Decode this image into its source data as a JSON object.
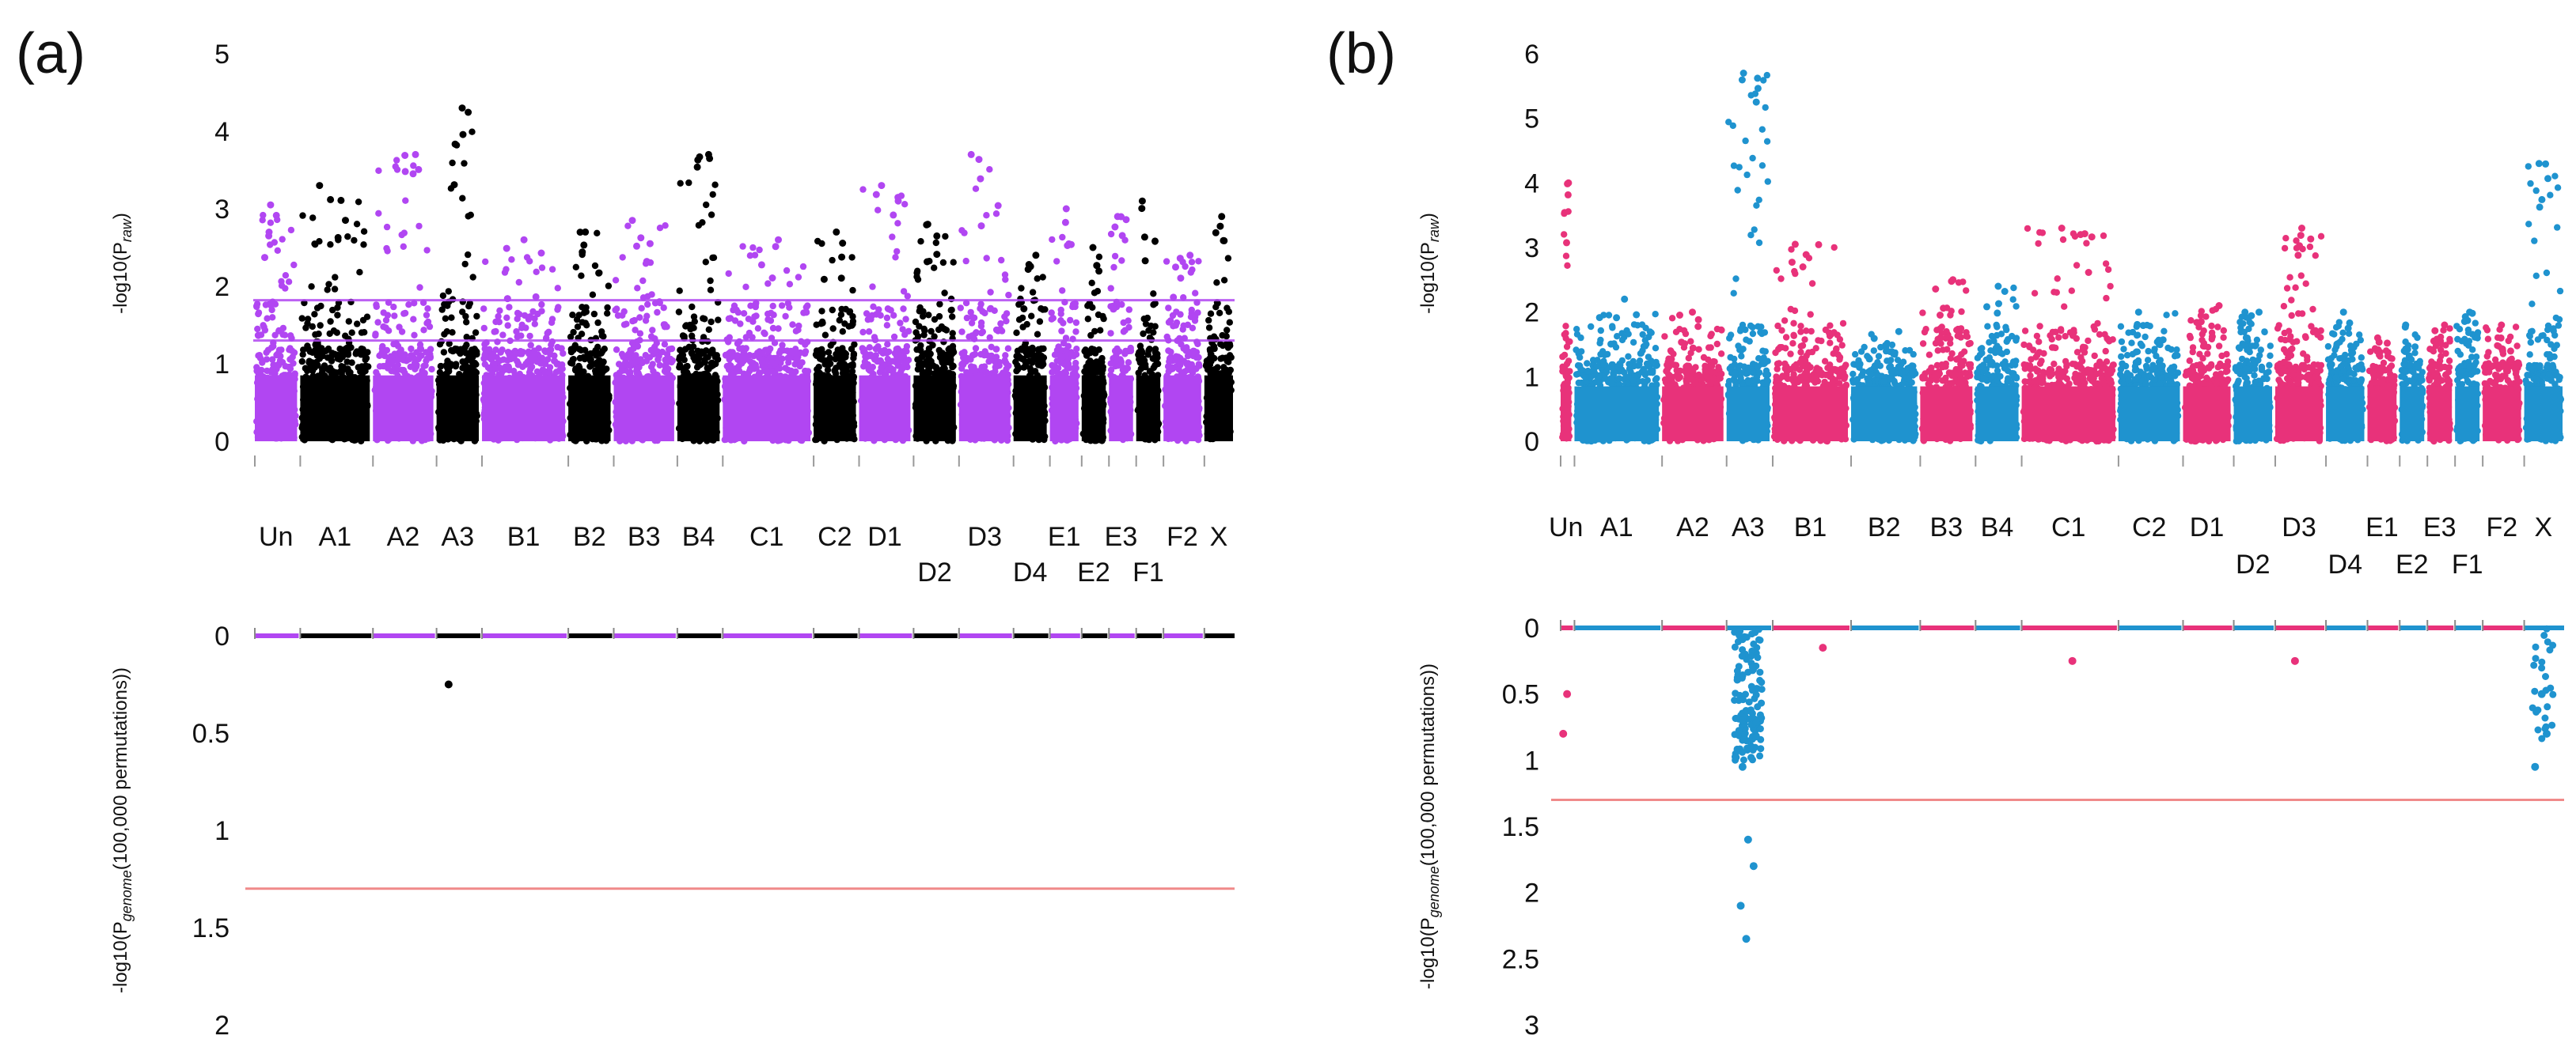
{
  "chart_data": [
    {
      "panel": "(a)",
      "type": "scatter",
      "subtype": "manhattan",
      "top": {
        "ylabel_main": "-log10(P",
        "ylabel_sub": "raw",
        "ylabel_end": ")",
        "ylim": [
          0,
          5
        ],
        "ticks": [
          "0",
          "1",
          "2",
          "3",
          "4",
          "5"
        ],
        "colors": [
          "#b146f2",
          "#000000"
        ],
        "threshold_lines": [
          1.3,
          1.82
        ],
        "threshold_color": "#b146f2"
      },
      "chromosomes": [
        {
          "name": "Un",
          "label_row": 0,
          "peak": 3.05
        },
        {
          "name": "A1",
          "label_row": 0,
          "peak": 3.3
        },
        {
          "name": "A2",
          "label_row": 0,
          "peak": 3.7
        },
        {
          "name": "A3",
          "label_row": 0,
          "peak": 4.3
        },
        {
          "name": "B1",
          "label_row": 0,
          "peak": 2.6
        },
        {
          "name": "B2",
          "label_row": 0,
          "peak": 2.7
        },
        {
          "name": "B3",
          "label_row": 0,
          "peak": 2.85
        },
        {
          "name": "B4",
          "label_row": 0,
          "peak": 3.7
        },
        {
          "name": "C1",
          "label_row": 0,
          "peak": 2.6
        },
        {
          "name": "C2",
          "label_row": 0,
          "peak": 2.7
        },
        {
          "name": "D1",
          "label_row": 0,
          "peak": 3.3
        },
        {
          "name": "D2",
          "label_row": 1,
          "peak": 2.8
        },
        {
          "name": "D3",
          "label_row": 0,
          "peak": 3.7
        },
        {
          "name": "D4",
          "label_row": 1,
          "peak": 2.4
        },
        {
          "name": "E1",
          "label_row": 0,
          "peak": 3.0
        },
        {
          "name": "E2",
          "label_row": 1,
          "peak": 2.5
        },
        {
          "name": "E3",
          "label_row": 0,
          "peak": 2.9
        },
        {
          "name": "F1",
          "label_row": 1,
          "peak": 3.1
        },
        {
          "name": "F2",
          "label_row": 0,
          "peak": 2.4
        },
        {
          "name": "X",
          "label_row": 0,
          "peak": 2.9
        }
      ],
      "bottom": {
        "ylabel_main": "-log10(P",
        "ylabel_sub": "genome",
        "ylabel_end": "(100,000 permutations))",
        "ylim": [
          0,
          2
        ],
        "ticks": [
          "0",
          "0.5",
          "1",
          "1.5",
          "2"
        ],
        "threshold": 1.3,
        "threshold_color": "#f08a8a",
        "outliers": [
          {
            "chrom": "A3",
            "value": 0.25
          }
        ]
      }
    },
    {
      "panel": "(b)",
      "type": "scatter",
      "subtype": "manhattan",
      "top": {
        "ylabel_main": "-log10(P",
        "ylabel_sub": "raw",
        "ylabel_end": ")",
        "ylim": [
          0,
          6
        ],
        "ticks": [
          "0",
          "1",
          "2",
          "3",
          "4",
          "5",
          "6"
        ],
        "colors": [
          "#e8327a",
          "#1f93cf"
        ],
        "threshold_lines": []
      },
      "chromosomes": [
        {
          "name": "Un",
          "label_row": 0,
          "peak": 4.0
        },
        {
          "name": "A1",
          "label_row": 0,
          "peak": 2.2
        },
        {
          "name": "A2",
          "label_row": 0,
          "peak": 2.0
        },
        {
          "name": "A3",
          "label_row": 0,
          "peak": 5.7
        },
        {
          "name": "B1",
          "label_row": 0,
          "peak": 3.05
        },
        {
          "name": "B2",
          "label_row": 0,
          "peak": 1.7
        },
        {
          "name": "B3",
          "label_row": 0,
          "peak": 2.5
        },
        {
          "name": "B4",
          "label_row": 0,
          "peak": 2.4
        },
        {
          "name": "C1",
          "label_row": 0,
          "peak": 3.3
        },
        {
          "name": "C2",
          "label_row": 0,
          "peak": 2.0
        },
        {
          "name": "D1",
          "label_row": 0,
          "peak": 2.1
        },
        {
          "name": "D2",
          "label_row": 1,
          "peak": 2.0
        },
        {
          "name": "D3",
          "label_row": 0,
          "peak": 3.3
        },
        {
          "name": "D4",
          "label_row": 1,
          "peak": 2.0
        },
        {
          "name": "E1",
          "label_row": 0,
          "peak": 1.6
        },
        {
          "name": "E2",
          "label_row": 1,
          "peak": 1.8
        },
        {
          "name": "E3",
          "label_row": 0,
          "peak": 1.8
        },
        {
          "name": "F1",
          "label_row": 1,
          "peak": 2.0
        },
        {
          "name": "F2",
          "label_row": 0,
          "peak": 1.8
        },
        {
          "name": "X",
          "label_row": 0,
          "peak": 4.3
        }
      ],
      "bottom": {
        "ylabel_main": "-log10(P",
        "ylabel_sub": "genome",
        "ylabel_end": "(100,000 permutations))",
        "ylim": [
          0,
          3
        ],
        "ticks": [
          "0",
          "0.5",
          "1",
          "1.5",
          "2",
          "2.5",
          "3"
        ],
        "threshold": 1.3,
        "threshold_color": "#f08a8a",
        "outliers": [
          {
            "chrom": "Un",
            "value": 0.8
          },
          {
            "chrom": "Un",
            "value": 0.5
          },
          {
            "chrom": "A3",
            "value": 2.35
          },
          {
            "chrom": "A3",
            "value": 2.1
          },
          {
            "chrom": "A3",
            "value": 1.8
          },
          {
            "chrom": "A3",
            "value": 1.6
          },
          {
            "chrom": "A3",
            "value": 1.05
          },
          {
            "chrom": "B1",
            "value": 0.15
          },
          {
            "chrom": "C1",
            "value": 0.25
          },
          {
            "chrom": "D3",
            "value": 0.25
          },
          {
            "chrom": "X",
            "value": 1.05
          },
          {
            "chrom": "X",
            "value": 0.8
          },
          {
            "chrom": "X",
            "value": 0.5
          }
        ]
      }
    }
  ]
}
